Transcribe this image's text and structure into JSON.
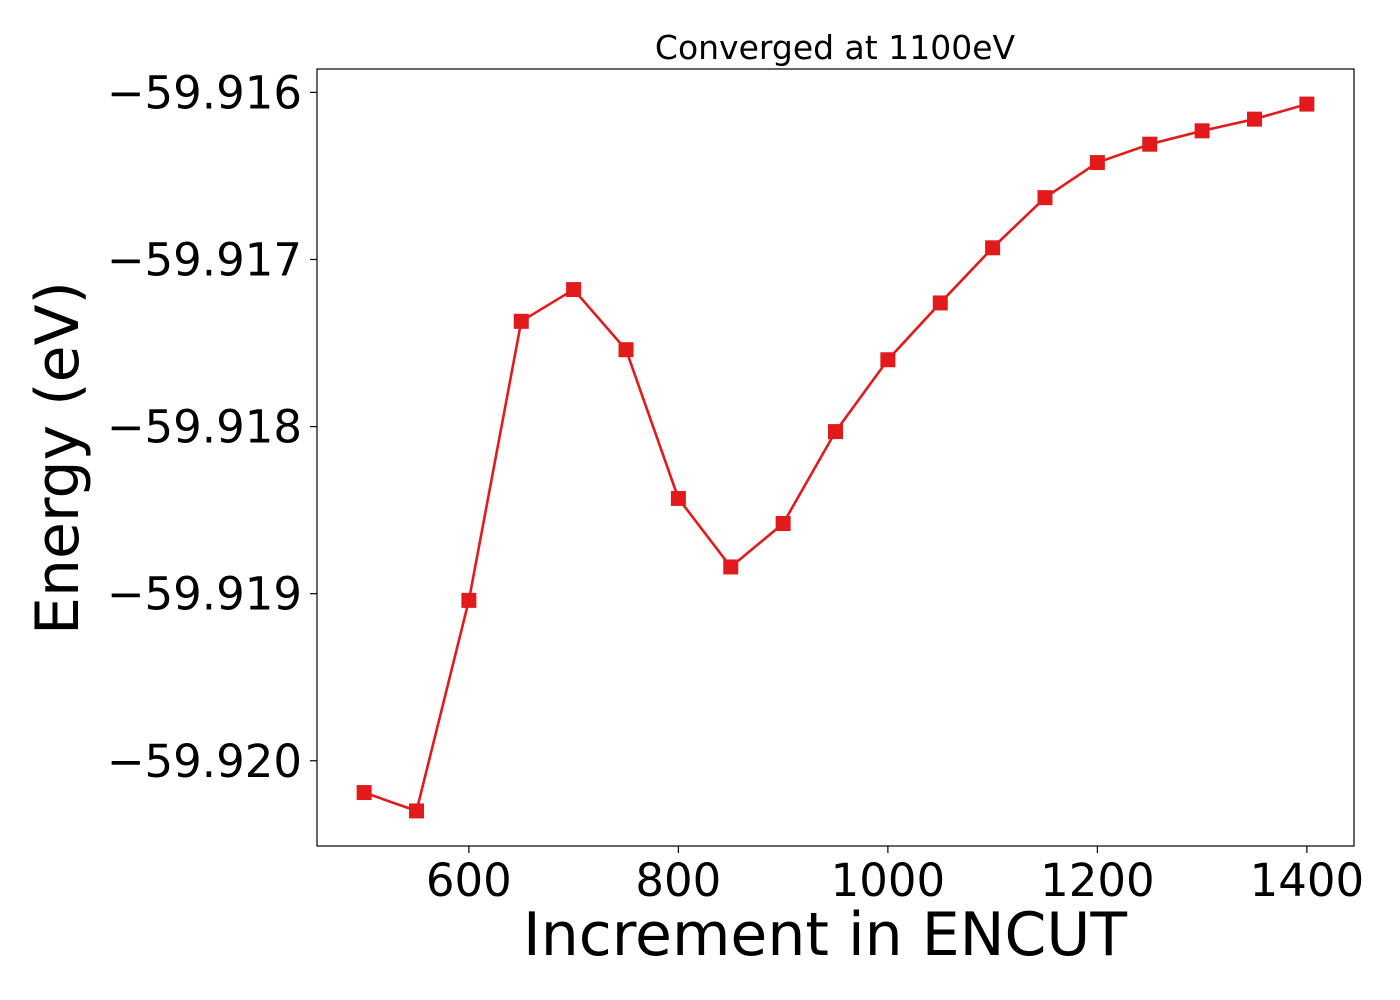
{
  "chart_data": {
    "type": "line",
    "title": "Converged at 1100eV",
    "xlabel": "Increment in ENCUT",
    "ylabel": "Energy (eV)",
    "xlim": [
      455,
      1445
    ],
    "ylim": [
      -59.92051,
      -59.91586
    ],
    "xticks": [
      600,
      800,
      1000,
      1200,
      1400
    ],
    "xtick_labels": [
      "600",
      "800",
      "1000",
      "1200",
      "1400"
    ],
    "yticks": [
      -59.916,
      -59.917,
      -59.918,
      -59.919,
      -59.92
    ],
    "ytick_labels": [
      "−59.916",
      "−59.917",
      "−59.918",
      "−59.919",
      "−59.920"
    ],
    "grid": false,
    "series": [
      {
        "color": "#e31a1c",
        "marker": "square",
        "x": [
          500,
          550,
          600,
          650,
          700,
          750,
          800,
          850,
          900,
          950,
          1000,
          1050,
          1100,
          1150,
          1200,
          1250,
          1300,
          1350,
          1400
        ],
        "y": [
          -59.92019,
          -59.9203,
          -59.91904,
          -59.91737,
          -59.91718,
          -59.91754,
          -59.91843,
          -59.91884,
          -59.91858,
          -59.91803,
          -59.9176,
          -59.91726,
          -59.91693,
          -59.91663,
          -59.91642,
          -59.91631,
          -59.91623,
          -59.91616,
          -59.91607
        ]
      }
    ]
  }
}
